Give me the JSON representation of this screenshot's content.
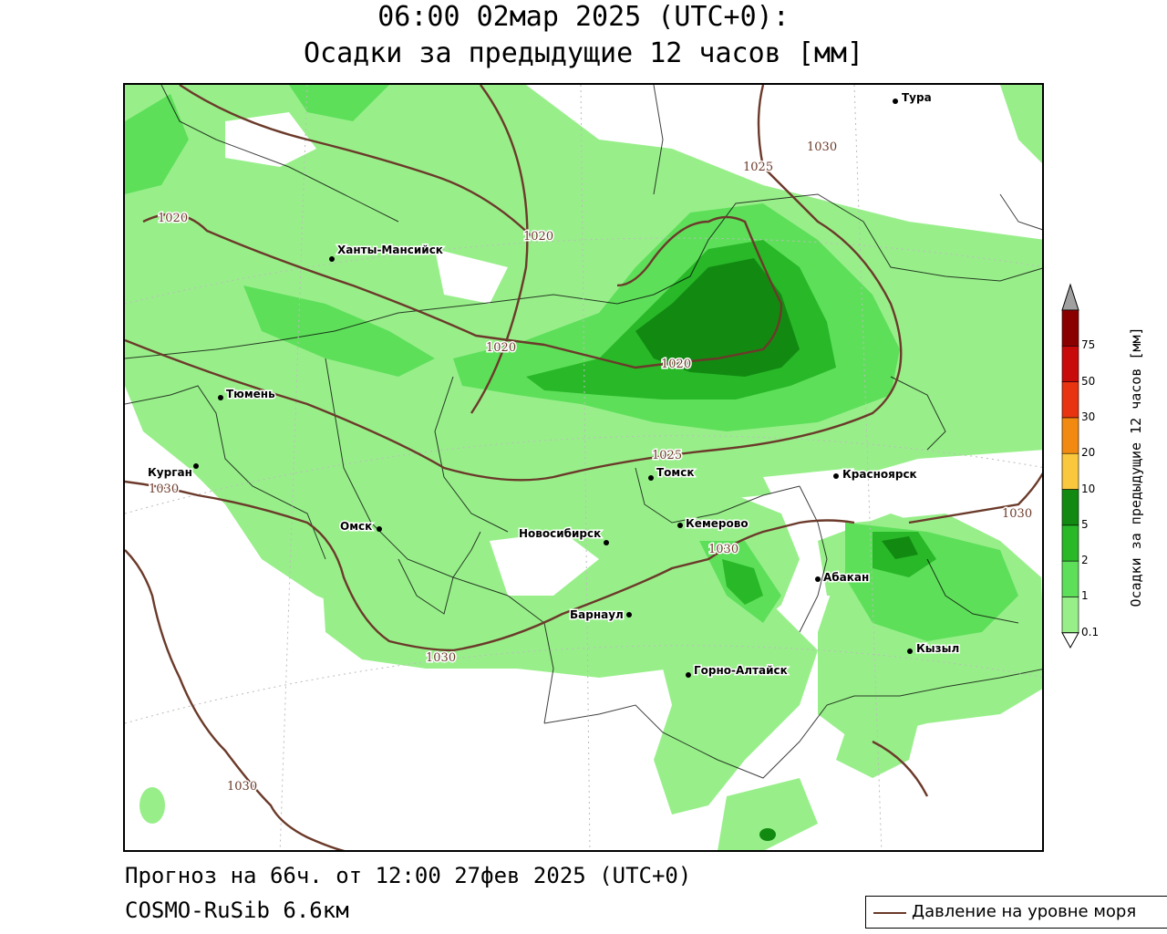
{
  "title": {
    "line1": "06:00 02мар 2025 (UTC+0):",
    "line2": "Осадки за предыдущие 12 часов [мм]"
  },
  "footer": {
    "forecast": "Прогноз на 66ч. от 12:00 27фев 2025 (UTC+0)",
    "model": "COSMO-RuSib 6.6км"
  },
  "legend": {
    "line_label": "Давление на уровне моря",
    "line_color": "#6b3a2a"
  },
  "colorbar": {
    "title": "Осадки за предыдущие 12 часов [мм]",
    "levels": [
      "0.1",
      "1",
      "2",
      "5",
      "10",
      "20",
      "30",
      "50",
      "75"
    ],
    "colors": [
      "#98ef8a",
      "#5edf5a",
      "#28b828",
      "#128a12",
      "#f9c83c",
      "#f28a12",
      "#e83410",
      "#c80a0a",
      "#8a0000"
    ],
    "overflow_color": "#a0a0a0"
  },
  "cities": [
    {
      "name": "Тура"
    },
    {
      "name": "Ханты-Мансийск"
    },
    {
      "name": "Тюмень"
    },
    {
      "name": "Курган"
    },
    {
      "name": "Омск"
    },
    {
      "name": "Новосибирск"
    },
    {
      "name": "Томск"
    },
    {
      "name": "Кемерово"
    },
    {
      "name": "Красноярск"
    },
    {
      "name": "Абакан"
    },
    {
      "name": "Барнаул"
    },
    {
      "name": "Горно-Алтайск"
    },
    {
      "name": "Кызыл"
    }
  ],
  "isobar_labels": [
    "1030",
    "1025",
    "1020",
    "1020",
    "1020",
    "1020",
    "1025",
    "1030",
    "1030",
    "1030",
    "1030",
    "1030"
  ]
}
